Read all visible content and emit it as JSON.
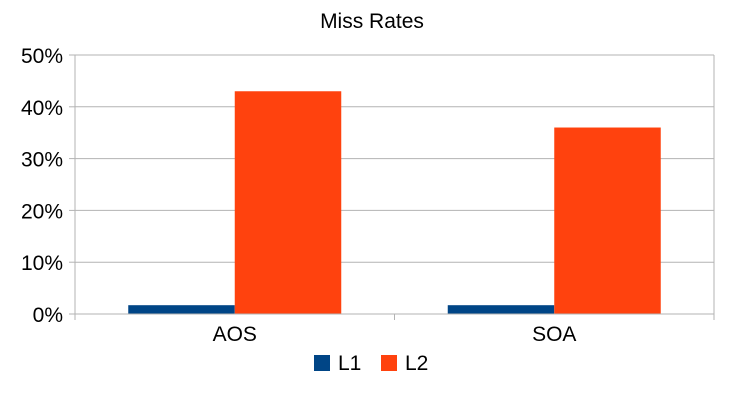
{
  "chart_data": {
    "type": "bar",
    "title": "Miss Rates",
    "xlabel": "",
    "ylabel": "",
    "categories": [
      "AOS",
      "SOA"
    ],
    "series": [
      {
        "name": "L1",
        "values": [
          1.7,
          1.7
        ],
        "color": "#004586"
      },
      {
        "name": "L2",
        "values": [
          43,
          36
        ],
        "color": "#ff420e"
      }
    ],
    "ylim": [
      0,
      50
    ],
    "yticks": [
      "0%",
      "10%",
      "20%",
      "30%",
      "40%",
      "50%"
    ],
    "grid": true,
    "legend_position": "bottom"
  }
}
